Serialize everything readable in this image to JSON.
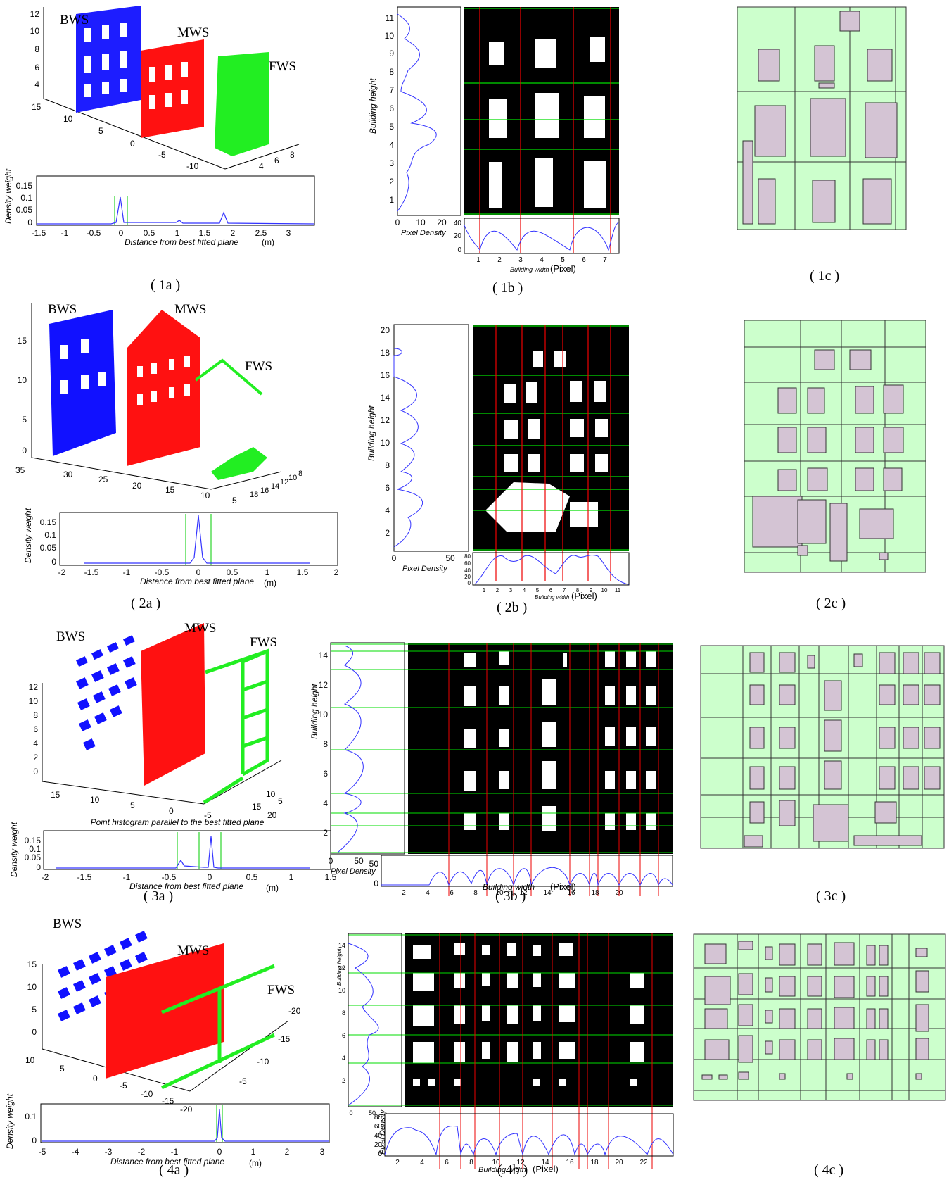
{
  "captions": [
    "( 1a )",
    "( 1b )",
    "( 1c )",
    "( 2a )",
    "( 2b )",
    "( 2c )",
    "( 3a )",
    "( 3b )",
    "( 3c )",
    "( 4a )",
    "( 4b )",
    "( 4c )"
  ],
  "labels": {
    "bws": "BWS",
    "mws": "MWS",
    "fws": "FWS"
  },
  "axes": {
    "density_weight": "Density weight",
    "distance": "Distance from best fitted plane",
    "unit_m": "(m)",
    "histogram_parallel": "Point histogram parallel to the best fitted plane",
    "building_height": "Building height",
    "pixel_density": "Pixel Density",
    "building_width": "Building width",
    "unit_pixel": "(Pixel)"
  },
  "colors": {
    "bws": "#0000ff",
    "mws": "#ff0000",
    "fws": "#00ff00",
    "facade_bg": "#ccffcc",
    "window": "#d4c4d4",
    "grid_h": "#00cc00",
    "grid_v": "#dd0000",
    "curve": "#3333ff"
  },
  "rows": [
    {
      "a": {
        "z_ticks": [
          "12",
          "10",
          "8",
          "6",
          "4"
        ],
        "y_ticks": [
          "15",
          "10",
          "5",
          "0",
          "-5",
          "-10"
        ],
        "x_ticks": [
          "4",
          "6",
          "8"
        ],
        "hist_x_ticks": [
          "-1.5",
          "-1",
          "-0.5",
          "0",
          "0.5",
          "1",
          "1.5",
          "2",
          "2.5",
          "3"
        ],
        "hist_y_ticks": [
          "0.15",
          "0.1",
          "0.05",
          "0"
        ],
        "hist_peaks": [
          [
            -1.5,
            0.0
          ],
          [
            -0.2,
            0.0
          ],
          [
            0.0,
            0.1
          ],
          [
            0.2,
            0.0
          ],
          [
            1.0,
            0.005
          ],
          [
            1.5,
            0.0
          ],
          [
            1.8,
            0.02
          ],
          [
            2.0,
            0.0
          ],
          [
            3.4,
            0.0
          ]
        ]
      },
      "b": {
        "h_ticks": [
          "11",
          "10",
          "9",
          "8",
          "7",
          "6",
          "5",
          "4",
          "3",
          "2",
          "1"
        ],
        "dens_ticks": [
          "0",
          "10",
          "20"
        ],
        "w_ticks": [
          "1",
          "2",
          "3",
          "4",
          "5",
          "6",
          "7"
        ],
        "wdens_ticks": [
          "40",
          "20",
          "0"
        ]
      },
      "c": {}
    },
    {
      "a": {
        "z_ticks": [
          "15",
          "10",
          "5",
          "0"
        ],
        "y_ticks": [
          "35",
          "30",
          "25",
          "20",
          "15",
          "10",
          "5"
        ],
        "x_ticks": [
          "18",
          "16",
          "14",
          "12",
          "10",
          "8"
        ],
        "hist_x_ticks": [
          "-2",
          "-1.5",
          "-1",
          "-0.5",
          "0",
          "0.5",
          "1",
          "1.5",
          "2"
        ],
        "hist_y_ticks": [
          "0.15",
          "0.1",
          "0.05",
          "0"
        ],
        "hist_peaks": [
          [
            -1.6,
            0.0
          ],
          [
            -0.1,
            0.0
          ],
          [
            0.0,
            0.17
          ],
          [
            0.1,
            0.0
          ],
          [
            1.6,
            0.0
          ]
        ]
      },
      "b": {
        "h_ticks": [
          "20",
          "18",
          "16",
          "14",
          "12",
          "10",
          "8",
          "6",
          "4",
          "2"
        ],
        "dens_ticks": [
          "0",
          "50"
        ],
        "w_ticks": [
          "1",
          "2",
          "3",
          "4",
          "5",
          "6",
          "7",
          "8",
          "9",
          "10",
          "11"
        ],
        "wdens_ticks": [
          "80",
          "60",
          "40",
          "20",
          "0"
        ]
      },
      "c": {}
    },
    {
      "a": {
        "z_ticks": [
          "12",
          "10",
          "8",
          "6",
          "4",
          "2",
          "0"
        ],
        "y_ticks": [
          "15",
          "10",
          "5",
          "0",
          "-5"
        ],
        "x_ticks": [
          "5",
          "10",
          "15",
          "20"
        ],
        "hist_x_ticks": [
          "-2",
          "-1.5",
          "-1",
          "-0.5",
          "0",
          "0.5",
          "1",
          "1.5"
        ],
        "hist_y_ticks": [
          "0.15",
          "0.1",
          "0.05",
          "0"
        ],
        "hist_peaks": [
          [
            -1.8,
            0.0
          ],
          [
            -0.5,
            0.0
          ],
          [
            -0.4,
            0.03
          ],
          [
            -0.3,
            0.0
          ],
          [
            0.0,
            0.15
          ],
          [
            0.1,
            0.0
          ],
          [
            1.2,
            0.0
          ]
        ]
      },
      "b": {
        "h_ticks": [
          "14",
          "12",
          "10",
          "8",
          "6",
          "4",
          "2"
        ],
        "dens_ticks": [
          "0",
          "50"
        ],
        "w_ticks": [
          "2",
          "4",
          "6",
          "8",
          "10",
          "12",
          "14",
          "16",
          "18",
          "20"
        ],
        "wdens_ticks": [
          "50",
          "0"
        ]
      },
      "c": {}
    },
    {
      "a": {
        "z_ticks": [
          "15",
          "10",
          "5",
          "0"
        ],
        "y_ticks": [
          "10",
          "5",
          "0",
          "-5",
          "-10",
          "-15",
          "-20"
        ],
        "x_ticks": [
          "-20",
          "-15",
          "-10",
          "-5"
        ],
        "hist_x_ticks": [
          "-5",
          "-4",
          "-3",
          "-2",
          "-1",
          "0",
          "1",
          "2",
          "3"
        ],
        "hist_y_ticks": [
          "0.1",
          "0"
        ],
        "hist_peaks": [
          [
            -5,
            0.0
          ],
          [
            -0.2,
            0.0
          ],
          [
            0.0,
            0.12
          ],
          [
            0.2,
            0.0
          ],
          [
            2.6,
            0.0
          ]
        ]
      },
      "b": {
        "h_ticks": [
          "14",
          "12",
          "10",
          "8",
          "6",
          "4",
          "2"
        ],
        "dens_ticks": [
          "0",
          "50"
        ],
        "w_ticks": [
          "2",
          "4",
          "6",
          "8",
          "10",
          "12",
          "14",
          "16",
          "18",
          "20",
          "22"
        ],
        "wdens_ticks": [
          "80",
          "60",
          "40",
          "20",
          "0"
        ]
      },
      "c": {}
    }
  ]
}
